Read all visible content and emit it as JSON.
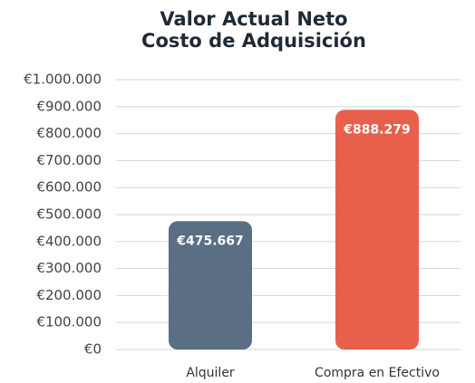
{
  "chart_data": {
    "type": "bar",
    "title": [
      "Valor Actual Neto",
      "Costo de Adquisición"
    ],
    "categories": [
      "Alquiler",
      "Compra en Efectivo"
    ],
    "values": [
      475667,
      888279
    ],
    "value_labels": [
      "€475.667",
      "€888.279"
    ],
    "colors": [
      "#5a6e84",
      "#e8604b"
    ],
    "ylim": [
      0,
      1000000
    ],
    "yticks": [
      {
        "value": 0,
        "label": "€0"
      },
      {
        "value": 100000,
        "label": "€100.000"
      },
      {
        "value": 200000,
        "label": "€200.000"
      },
      {
        "value": 300000,
        "label": "€300.000"
      },
      {
        "value": 400000,
        "label": "€400.000"
      },
      {
        "value": 500000,
        "label": "€500.000"
      },
      {
        "value": 600000,
        "label": "€600.000"
      },
      {
        "value": 700000,
        "label": "€700.000"
      },
      {
        "value": 800000,
        "label": "€800.000"
      },
      {
        "value": 900000,
        "label": "€900.000"
      },
      {
        "value": 1000000,
        "label": "€1.000.000"
      }
    ],
    "grid": true
  }
}
